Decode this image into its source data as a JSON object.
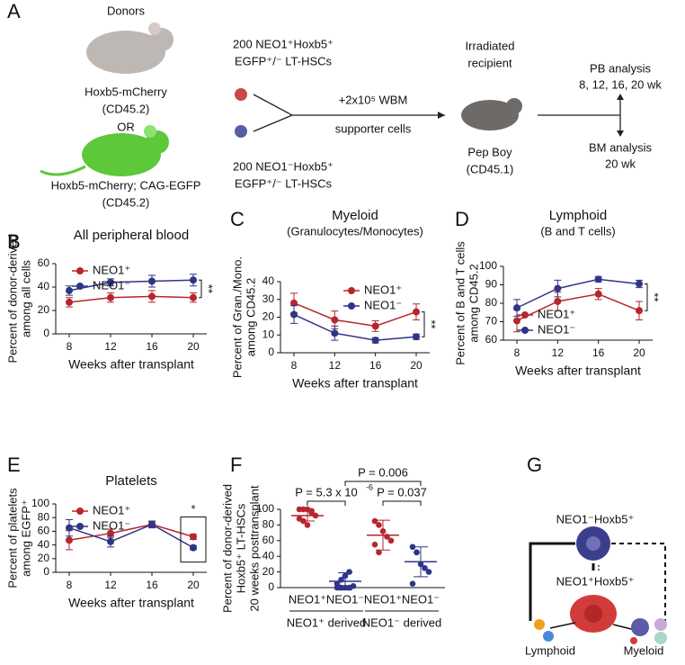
{
  "panel_labels": [
    "A",
    "B",
    "C",
    "D",
    "E",
    "F",
    "G"
  ],
  "diagram_a": {
    "lines": [
      "Donors",
      "Hoxb5-mCherry",
      "(CD45.2)",
      "OR",
      "Hoxb5-mCherry; CAG-EGFP",
      "(CD45.2)",
      "200 NEO1⁺Hoxb5⁺",
      "EGFP⁺/⁻ LT-HSCs",
      "+2x10⁵ WBM",
      "supporter cells",
      "200 NEO1⁻Hoxb5⁺",
      "EGFP⁺/⁻ LT-HSCs",
      "Irradiated",
      "recipient",
      "Pep Boy",
      "(CD45.1)",
      "PB analysis",
      "8, 12, 16, 20 wk",
      "BM analysis",
      "20 wk"
    ]
  },
  "diagram_g": {
    "top": "NEO1⁻Hoxb5⁺",
    "middle": "NEO1⁺Hoxb5⁺",
    "left": "Lymphoid",
    "right": "Myeloid"
  },
  "chart_data": [
    {
      "type": "line",
      "title": [
        "All peripheral blood"
      ],
      "ylabel": [
        "Percent of donor-derived",
        "among all cells"
      ],
      "xlabel": "Weeks after transplant",
      "categories": [
        "8",
        "12",
        "16",
        "20"
      ],
      "ylim": [
        0,
        60
      ],
      "yticks": [
        0,
        20,
        40,
        60
      ],
      "annotation": "**",
      "legend": "top-left",
      "series": [
        {
          "name": "NEO1⁺",
          "color": "#b5262e",
          "values": [
            27,
            31,
            32,
            31
          ],
          "errors": [
            4,
            4,
            5,
            4
          ]
        },
        {
          "name": "NEO1⁻",
          "color": "#2e3587",
          "values": [
            37,
            44,
            45,
            46
          ],
          "errors": [
            4,
            3,
            5,
            5
          ]
        }
      ]
    },
    {
      "type": "line",
      "title": [
        "Myeloid",
        "(Granulocytes/Monocytes)"
      ],
      "ylabel": [
        "Percent of Gran./Mono.",
        "among CD45.2"
      ],
      "xlabel": "Weeks after transplant",
      "categories": [
        "8",
        "12",
        "16",
        "20"
      ],
      "ylim": [
        0,
        40
      ],
      "yticks": [
        0,
        10,
        20,
        30,
        40
      ],
      "annotation": "**",
      "legend": "top-right",
      "series": [
        {
          "name": "NEO1⁺",
          "color": "#b5262e",
          "values": [
            28,
            18.5,
            15,
            23
          ],
          "errors": [
            5.5,
            5,
            3,
            4.5
          ]
        },
        {
          "name": "NEO1⁻",
          "color": "#2e3587",
          "values": [
            21.5,
            11,
            7,
            9
          ],
          "errors": [
            5,
            4,
            1.5,
            1.5
          ]
        }
      ]
    },
    {
      "type": "line",
      "title": [
        "Lymphoid",
        "(B and T cells)"
      ],
      "ylabel": [
        "Percent of B and T cells",
        "among CD45.2"
      ],
      "xlabel": "Weeks after transplant",
      "categories": [
        "8",
        "12",
        "16",
        "20"
      ],
      "ylim": [
        60,
        100
      ],
      "yticks": [
        60,
        70,
        80,
        90,
        100
      ],
      "annotation": "**",
      "legend": "bottom-left",
      "series": [
        {
          "name": "NEO1⁺",
          "color": "#b5262e",
          "values": [
            70.5,
            81,
            85,
            76
          ],
          "errors": [
            6,
            5,
            3,
            5
          ]
        },
        {
          "name": "NEO1⁻",
          "color": "#2e3587",
          "values": [
            77.5,
            88,
            93,
            90.5
          ],
          "errors": [
            4.5,
            4.5,
            1.5,
            2
          ]
        }
      ]
    },
    {
      "type": "line",
      "title": [
        "Platelets"
      ],
      "ylabel": [
        "Percent of platelets",
        "among EGFP⁺"
      ],
      "xlabel": "Weeks after transplant",
      "categories": [
        "8",
        "12",
        "16",
        "20"
      ],
      "ylim": [
        0,
        100
      ],
      "yticks": [
        0,
        20,
        40,
        60,
        80,
        100
      ],
      "annotation": "*",
      "legend": "top-left",
      "series": [
        {
          "name": "NEO1⁺",
          "color": "#b5262e",
          "values": [
            47,
            57,
            70,
            52
          ],
          "errors": [
            14,
            6,
            4,
            4
          ]
        },
        {
          "name": "NEO1⁻",
          "color": "#2e3587",
          "values": [
            65,
            45,
            70,
            36
          ],
          "errors": [
            12,
            8,
            5,
            3
          ]
        }
      ]
    },
    {
      "type": "strip",
      "ylabel": [
        "Percent of donor-derived",
        "Hoxb5⁺ LT-HSCs",
        "20 weeks posttransplant"
      ],
      "categories": [
        "NEO1⁺",
        "NEO1⁻",
        "NEO1⁺",
        "NEO1⁻"
      ],
      "groups": [
        "NEO1⁺ derived",
        "NEO1⁻ derived"
      ],
      "colors": [
        "#b5262e",
        "#2e3587",
        "#b5262e",
        "#2e3587"
      ],
      "points": [
        [
          100,
          100,
          100,
          98,
          92,
          88,
          85,
          80,
          96
        ],
        [
          0,
          0,
          0,
          0,
          2,
          5,
          10,
          15,
          20
        ],
        [
          85,
          80,
          72,
          65,
          60,
          55,
          45
        ],
        [
          52,
          45,
          30,
          25,
          20,
          5,
          45
        ]
      ],
      "means": [
        92,
        8,
        67,
        33
      ],
      "sds": [
        7,
        11,
        19,
        19
      ],
      "ylim": [
        0,
        100
      ],
      "yticks": [
        0,
        20,
        40,
        60,
        80,
        100
      ],
      "pvalues": [
        "P = 5.3 x 10",
        "P = 0.006",
        "P = 0.037"
      ],
      "pvalue_exponent": "-6"
    }
  ]
}
